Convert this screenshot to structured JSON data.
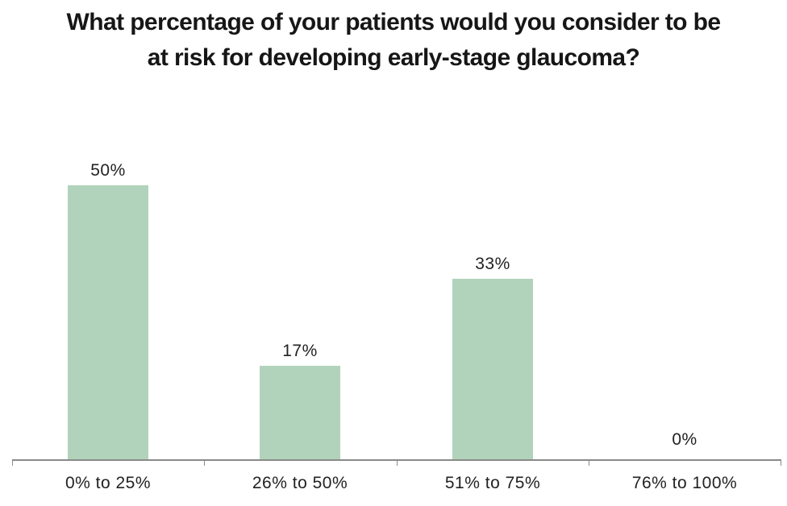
{
  "chart_data": {
    "type": "bar",
    "title": "What percentage of your patients would you consider to be at risk for developing early-stage glaucoma?",
    "title_lines": [
      "What percentage of your patients would you consider to be",
      "at risk for developing early-stage glaucoma?"
    ],
    "categories": [
      "0% to 25%",
      "26% to 50%",
      "51% to 75%",
      "76% to 100%"
    ],
    "values": [
      50,
      17,
      33,
      0
    ],
    "value_labels": [
      "50%",
      "17%",
      "33%",
      "0%"
    ],
    "xlabel": "",
    "ylabel": "",
    "ylim": [
      0,
      55
    ],
    "grid": false,
    "legend_position": "none",
    "bar_color": "#b2d3bb",
    "axis_color": "#8a8a8a",
    "text_color": "#222222"
  }
}
